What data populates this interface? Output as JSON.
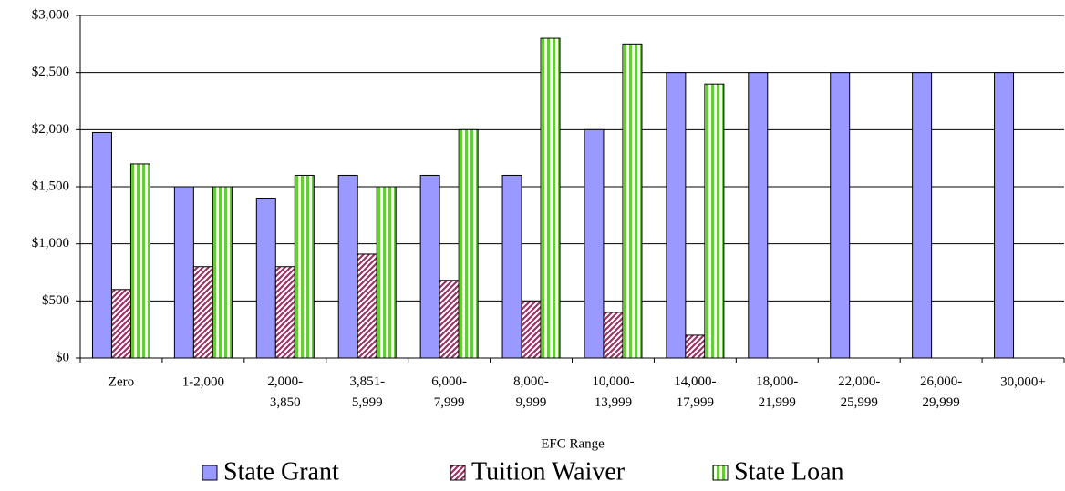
{
  "chart_data": {
    "type": "bar",
    "x_label": "EFC Range",
    "categories": [
      "Zero",
      "1-2,000",
      "2,000-\n3,850",
      "3,851-\n5,999",
      "6,000-\n7,999",
      "8,000-\n9,999",
      "10,000-\n13,999",
      "14,000-\n17,999",
      "18,000-\n21,999",
      "22,000-\n25,999",
      "26,000-\n29,999",
      "30,000+"
    ],
    "series": [
      {
        "name": "State Grant",
        "color": "#9999ff",
        "pattern": "solid",
        "values": [
          1975,
          1500,
          1400,
          1600,
          1600,
          1600,
          2000,
          2500,
          2500,
          2500,
          2500,
          2500
        ]
      },
      {
        "name": "Tuition Waiver",
        "color": "#993366",
        "pattern": "diagonal",
        "values": [
          600,
          800,
          800,
          910,
          680,
          500,
          400,
          200,
          null,
          null,
          null,
          null
        ]
      },
      {
        "name": "State Loan",
        "color": "#66cc33",
        "pattern": "vertical",
        "values": [
          1700,
          1500,
          1600,
          1500,
          2000,
          2800,
          2750,
          2400,
          null,
          null,
          null,
          null
        ]
      }
    ],
    "ylim": [
      0,
      3000
    ],
    "yticks": [
      {
        "value": 0,
        "label": "$0"
      },
      {
        "value": 500,
        "label": "$500"
      },
      {
        "value": 1000,
        "label": "$1,000"
      },
      {
        "value": 1500,
        "label": "$1,500"
      },
      {
        "value": 2000,
        "label": "$2,000"
      },
      {
        "value": 2500,
        "label": "$2,500"
      },
      {
        "value": 3000,
        "label": "$3,000"
      }
    ],
    "grid": true
  }
}
